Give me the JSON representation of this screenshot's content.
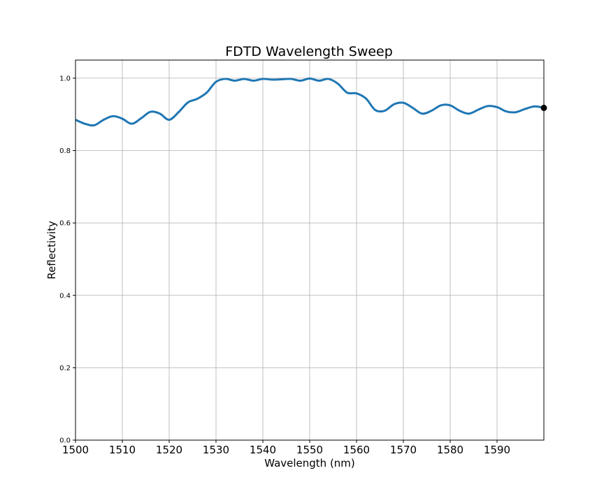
{
  "chart_data": {
    "type": "line",
    "title": "FDTD Wavelength Sweep",
    "xlabel": "Wavelength (nm)",
    "ylabel": "Reflectivity",
    "xlim": [
      1500,
      1600
    ],
    "ylim": [
      0.0,
      1.05
    ],
    "grid": true,
    "xticks": [
      1500,
      1510,
      1520,
      1530,
      1540,
      1550,
      1560,
      1570,
      1580,
      1590
    ],
    "xtick_labels": [
      "1500",
      "1510",
      "1520",
      "1530",
      "1540",
      "1550",
      "1560",
      "1570",
      "1580",
      "1590"
    ],
    "yticks": [
      0.0,
      0.2,
      0.4,
      0.6,
      0.8,
      1.0
    ],
    "ytick_labels": [
      "0.0",
      "0.2",
      "0.4",
      "0.6",
      "0.8",
      "1.0"
    ],
    "series": [
      {
        "name": "Reflectivity",
        "color": "#1f77b4",
        "x": [
          1500,
          1502,
          1504,
          1506,
          1508,
          1510,
          1512,
          1514,
          1516,
          1518,
          1520,
          1522,
          1524,
          1526,
          1528,
          1530,
          1532,
          1534,
          1536,
          1538,
          1540,
          1542,
          1544,
          1546,
          1548,
          1550,
          1552,
          1554,
          1556,
          1558,
          1560,
          1562,
          1564,
          1566,
          1568,
          1570,
          1572,
          1574,
          1576,
          1578,
          1580,
          1582,
          1584,
          1586,
          1588,
          1590,
          1592,
          1594,
          1596,
          1598,
          1600
        ],
        "y": [
          0.885,
          0.874,
          0.87,
          0.885,
          0.895,
          0.888,
          0.874,
          0.889,
          0.907,
          0.902,
          0.885,
          0.906,
          0.933,
          0.943,
          0.96,
          0.99,
          0.998,
          0.993,
          0.998,
          0.993,
          0.998,
          0.996,
          0.997,
          0.998,
          0.993,
          0.999,
          0.993,
          0.998,
          0.985,
          0.96,
          0.958,
          0.944,
          0.912,
          0.91,
          0.928,
          0.932,
          0.918,
          0.902,
          0.91,
          0.925,
          0.925,
          0.91,
          0.902,
          0.913,
          0.923,
          0.92,
          0.908,
          0.906,
          0.915,
          0.922,
          0.918
        ]
      }
    ],
    "marker": {
      "x": 1600,
      "y": 0.918,
      "color": "#000000"
    }
  }
}
